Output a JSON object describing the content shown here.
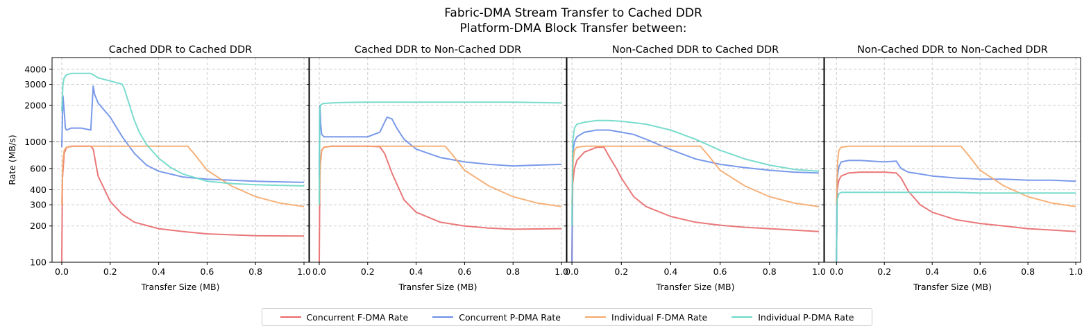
{
  "figure": {
    "title_line1": "Fabric-DMA Stream Transfer to Cached DDR",
    "title_line2": "Platform-DMA Block Transfer between:"
  },
  "legend": [
    {
      "name": "Concurrent F-DMA Rate",
      "color": "#e8686a"
    },
    {
      "name": "Concurrent P-DMA Rate",
      "color": "#6a8ee8"
    },
    {
      "name": "Individual F-DMA Rate",
      "color": "#f5a86a"
    },
    {
      "name": "Individual P-DMA Rate",
      "color": "#6ad8c8"
    }
  ],
  "chart_data": [
    {
      "type": "line",
      "title": "Cached DDR to Cached DDR",
      "xlabel": "Transfer Size (MB)",
      "ylabel": "Rate (MB/s)",
      "yscale": "log",
      "xlim": [
        -0.04,
        1.02
      ],
      "ylim": [
        100,
        5000
      ],
      "xticks": [
        "0.0",
        "0.2",
        "0.4",
        "0.6",
        "0.8",
        "1.0"
      ],
      "yticks": [
        "100",
        "200",
        "300",
        "400",
        "600",
        "1000",
        "2000",
        "3000",
        "4000"
      ],
      "reference_line": 1000,
      "grid": true,
      "series": [
        {
          "name": "Concurrent F-DMA Rate",
          "x": [
            0,
            0.003,
            0.01,
            0.02,
            0.04,
            0.08,
            0.12,
            0.13,
            0.15,
            0.2,
            0.25,
            0.3,
            0.4,
            0.5,
            0.6,
            0.8,
            1.0
          ],
          "y": [
            100,
            500,
            800,
            900,
            920,
            920,
            920,
            870,
            520,
            320,
            250,
            215,
            190,
            180,
            172,
            166,
            165
          ]
        },
        {
          "name": "Concurrent P-DMA Rate",
          "x": [
            0,
            0.005,
            0.01,
            0.015,
            0.02,
            0.04,
            0.08,
            0.12,
            0.13,
            0.135,
            0.15,
            0.2,
            0.25,
            0.3,
            0.35,
            0.4,
            0.5,
            0.6,
            0.7,
            0.8,
            1.0
          ],
          "y": [
            900,
            2400,
            1800,
            1300,
            1250,
            1300,
            1300,
            1250,
            2900,
            2500,
            2100,
            1600,
            1100,
            800,
            640,
            570,
            510,
            490,
            480,
            470,
            460
          ]
        },
        {
          "name": "Individual F-DMA Rate",
          "x": [
            0,
            0.005,
            0.01,
            0.02,
            0.05,
            0.1,
            0.2,
            0.3,
            0.4,
            0.5,
            0.52,
            0.55,
            0.6,
            0.7,
            0.8,
            0.9,
            1.0
          ],
          "y": [
            300,
            700,
            850,
            900,
            920,
            920,
            920,
            920,
            920,
            920,
            920,
            780,
            580,
            430,
            350,
            310,
            290
          ]
        },
        {
          "name": "Individual P-DMA Rate",
          "x": [
            0,
            0.005,
            0.01,
            0.02,
            0.04,
            0.08,
            0.12,
            0.15,
            0.2,
            0.25,
            0.26,
            0.28,
            0.3,
            0.32,
            0.35,
            0.4,
            0.45,
            0.5,
            0.6,
            0.7,
            0.8,
            1.0
          ],
          "y": [
            1800,
            3000,
            3400,
            3600,
            3700,
            3700,
            3700,
            3400,
            3200,
            3000,
            2700,
            2000,
            1500,
            1200,
            950,
            730,
            610,
            540,
            470,
            450,
            440,
            430
          ]
        }
      ]
    },
    {
      "type": "line",
      "title": "Cached DDR to Non-Cached DDR",
      "xlabel": "Transfer Size (MB)",
      "yscale": "log",
      "xlim": [
        -0.04,
        1.02
      ],
      "ylim": [
        100,
        5000
      ],
      "xticks": [
        "0.0",
        "0.2",
        "0.4",
        "0.6",
        "0.8",
        "1.0"
      ],
      "reference_line": 1000,
      "grid": true,
      "series": [
        {
          "name": "Concurrent F-DMA Rate",
          "x": [
            0,
            0.003,
            0.01,
            0.02,
            0.05,
            0.1,
            0.2,
            0.25,
            0.27,
            0.3,
            0.35,
            0.4,
            0.5,
            0.6,
            0.7,
            0.8,
            1.0
          ],
          "y": [
            100,
            600,
            850,
            900,
            920,
            920,
            920,
            910,
            800,
            550,
            330,
            260,
            215,
            200,
            192,
            188,
            190
          ]
        },
        {
          "name": "Concurrent P-DMA Rate",
          "x": [
            0,
            0.003,
            0.006,
            0.01,
            0.02,
            0.05,
            0.1,
            0.2,
            0.25,
            0.28,
            0.3,
            0.32,
            0.35,
            0.4,
            0.5,
            0.6,
            0.7,
            0.8,
            0.9,
            1.0
          ],
          "y": [
            500,
            2000,
            1400,
            1150,
            1100,
            1100,
            1100,
            1100,
            1200,
            1600,
            1550,
            1300,
            1050,
            870,
            740,
            680,
            650,
            630,
            640,
            650
          ]
        },
        {
          "name": "Individual F-DMA Rate",
          "x": [
            0,
            0.005,
            0.01,
            0.02,
            0.05,
            0.1,
            0.2,
            0.3,
            0.4,
            0.5,
            0.52,
            0.55,
            0.6,
            0.7,
            0.8,
            0.9,
            1.0
          ],
          "y": [
            300,
            700,
            850,
            900,
            920,
            920,
            920,
            920,
            920,
            920,
            920,
            780,
            580,
            430,
            350,
            310,
            290
          ]
        },
        {
          "name": "Individual P-DMA Rate",
          "x": [
            0,
            0.002,
            0.005,
            0.01,
            0.02,
            0.05,
            0.1,
            0.2,
            0.4,
            0.6,
            0.8,
            1.0
          ],
          "y": [
            300,
            1800,
            2000,
            2050,
            2080,
            2100,
            2120,
            2130,
            2130,
            2130,
            2130,
            2100
          ]
        }
      ]
    },
    {
      "type": "line",
      "title": "Non-Cached DDR to Cached DDR",
      "xlabel": "Transfer Size (MB)",
      "yscale": "log",
      "xlim": [
        -0.02,
        1.02
      ],
      "ylim": [
        100,
        5000
      ],
      "xticks": [
        "0.0",
        "0.2",
        "0.4",
        "0.6",
        "0.8",
        "1.0"
      ],
      "reference_line": 1000,
      "grid": true,
      "series": [
        {
          "name": "Concurrent F-DMA Rate",
          "x": [
            0,
            0.003,
            0.01,
            0.02,
            0.05,
            0.1,
            0.13,
            0.15,
            0.18,
            0.2,
            0.25,
            0.3,
            0.4,
            0.5,
            0.6,
            0.7,
            0.8,
            1.0
          ],
          "y": [
            100,
            450,
            600,
            700,
            820,
            900,
            900,
            760,
            600,
            500,
            350,
            290,
            240,
            215,
            203,
            195,
            190,
            180
          ]
        },
        {
          "name": "Concurrent P-DMA Rate",
          "x": [
            0,
            0.003,
            0.01,
            0.02,
            0.05,
            0.1,
            0.15,
            0.2,
            0.25,
            0.3,
            0.35,
            0.4,
            0.5,
            0.6,
            0.7,
            0.8,
            0.9,
            1.0
          ],
          "y": [
            100,
            800,
            1000,
            1100,
            1200,
            1250,
            1250,
            1200,
            1150,
            1050,
            950,
            860,
            720,
            650,
            610,
            580,
            560,
            550
          ]
        },
        {
          "name": "Individual F-DMA Rate",
          "x": [
            0,
            0.005,
            0.01,
            0.02,
            0.05,
            0.1,
            0.2,
            0.3,
            0.4,
            0.5,
            0.52,
            0.55,
            0.6,
            0.7,
            0.8,
            0.9,
            1.0
          ],
          "y": [
            300,
            700,
            850,
            900,
            920,
            920,
            920,
            920,
            920,
            920,
            920,
            780,
            580,
            430,
            350,
            310,
            290
          ]
        },
        {
          "name": "Individual P-DMA Rate",
          "x": [
            0,
            0.003,
            0.01,
            0.02,
            0.05,
            0.1,
            0.15,
            0.2,
            0.3,
            0.4,
            0.5,
            0.6,
            0.7,
            0.8,
            0.9,
            1.0
          ],
          "y": [
            200,
            1000,
            1300,
            1400,
            1450,
            1500,
            1500,
            1480,
            1400,
            1250,
            1050,
            850,
            720,
            640,
            590,
            570
          ]
        }
      ]
    },
    {
      "type": "line",
      "title": "Non-Cached DDR to Non-Cached DDR",
      "xlabel": "Transfer Size (MB)",
      "yscale": "log",
      "xlim": [
        -0.05,
        1.02
      ],
      "ylim": [
        100,
        5000
      ],
      "xticks": [
        "0.0",
        "0.2",
        "0.4",
        "0.6",
        "0.8",
        "1.0"
      ],
      "reference_line": 1000,
      "grid": true,
      "series": [
        {
          "name": "Concurrent F-DMA Rate",
          "x": [
            0,
            0.003,
            0.01,
            0.02,
            0.05,
            0.1,
            0.2,
            0.25,
            0.27,
            0.3,
            0.35,
            0.4,
            0.5,
            0.6,
            0.7,
            0.8,
            0.9,
            1.0
          ],
          "y": [
            100,
            400,
            480,
            520,
            550,
            560,
            560,
            550,
            500,
            390,
            300,
            260,
            225,
            210,
            200,
            190,
            185,
            180
          ]
        },
        {
          "name": "Concurrent P-DMA Rate",
          "x": [
            0,
            0.003,
            0.01,
            0.02,
            0.05,
            0.1,
            0.2,
            0.25,
            0.27,
            0.3,
            0.35,
            0.4,
            0.5,
            0.6,
            0.7,
            0.8,
            0.9,
            1.0
          ],
          "y": [
            100,
            500,
            620,
            680,
            700,
            700,
            680,
            690,
            600,
            560,
            540,
            520,
            500,
            490,
            490,
            480,
            480,
            470
          ]
        },
        {
          "name": "Individual F-DMA Rate",
          "x": [
            0,
            0.005,
            0.01,
            0.02,
            0.05,
            0.1,
            0.2,
            0.3,
            0.4,
            0.5,
            0.52,
            0.55,
            0.6,
            0.7,
            0.8,
            0.9,
            1.0
          ],
          "y": [
            300,
            700,
            850,
            900,
            920,
            920,
            920,
            920,
            920,
            920,
            920,
            780,
            580,
            430,
            350,
            310,
            290
          ]
        },
        {
          "name": "Individual P-DMA Rate",
          "x": [
            0,
            0.003,
            0.01,
            0.02,
            0.05,
            0.1,
            0.2,
            0.3,
            0.4,
            0.5,
            0.6,
            0.7,
            0.8,
            0.9,
            1.0
          ],
          "y": [
            100,
            330,
            370,
            380,
            380,
            380,
            380,
            380,
            380,
            380,
            375,
            375,
            375,
            375,
            375
          ]
        }
      ]
    }
  ]
}
